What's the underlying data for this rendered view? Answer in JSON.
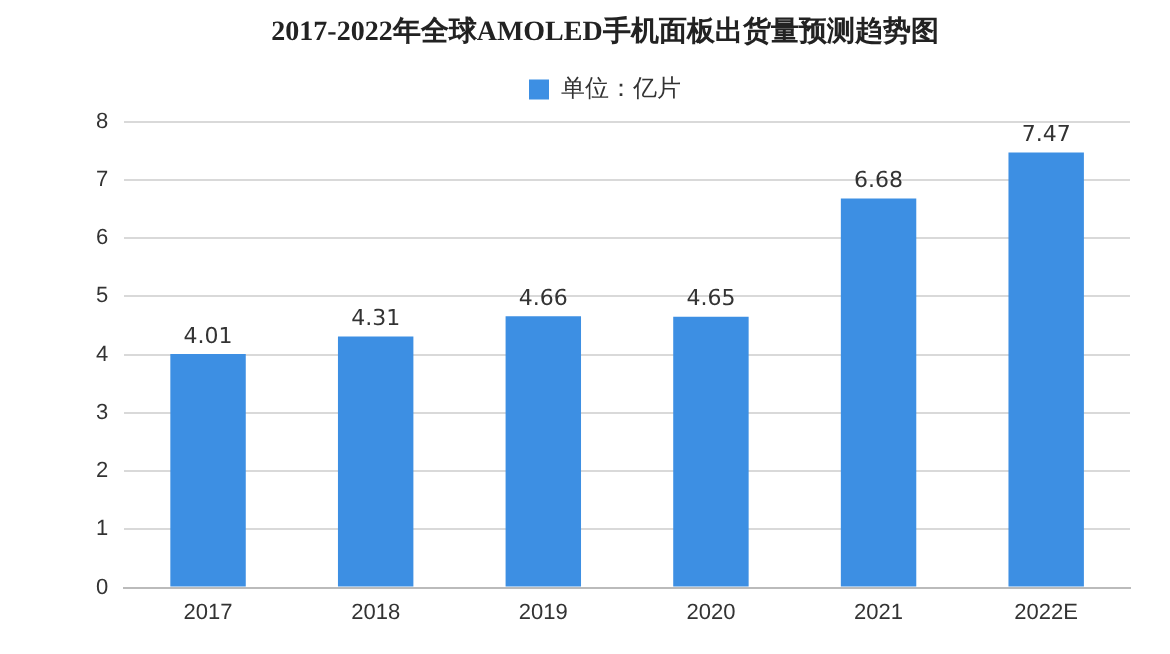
{
  "chart_data": {
    "type": "bar",
    "title": "2017-2022年全球AMOLED手机面板出货量预测趋势图",
    "categories": [
      "2017",
      "2018",
      "2019",
      "2020",
      "2021",
      "2022E"
    ],
    "series": [
      {
        "name": "单位：亿片",
        "color": "#3d8fe3",
        "values": [
          4.01,
          4.31,
          4.66,
          4.65,
          6.68,
          7.47
        ]
      }
    ],
    "ylim": [
      0,
      8
    ],
    "yticks": [
      0,
      1,
      2,
      3,
      4,
      5,
      6,
      7,
      8
    ],
    "grid": "y",
    "legend": "top",
    "data_labels": true
  }
}
